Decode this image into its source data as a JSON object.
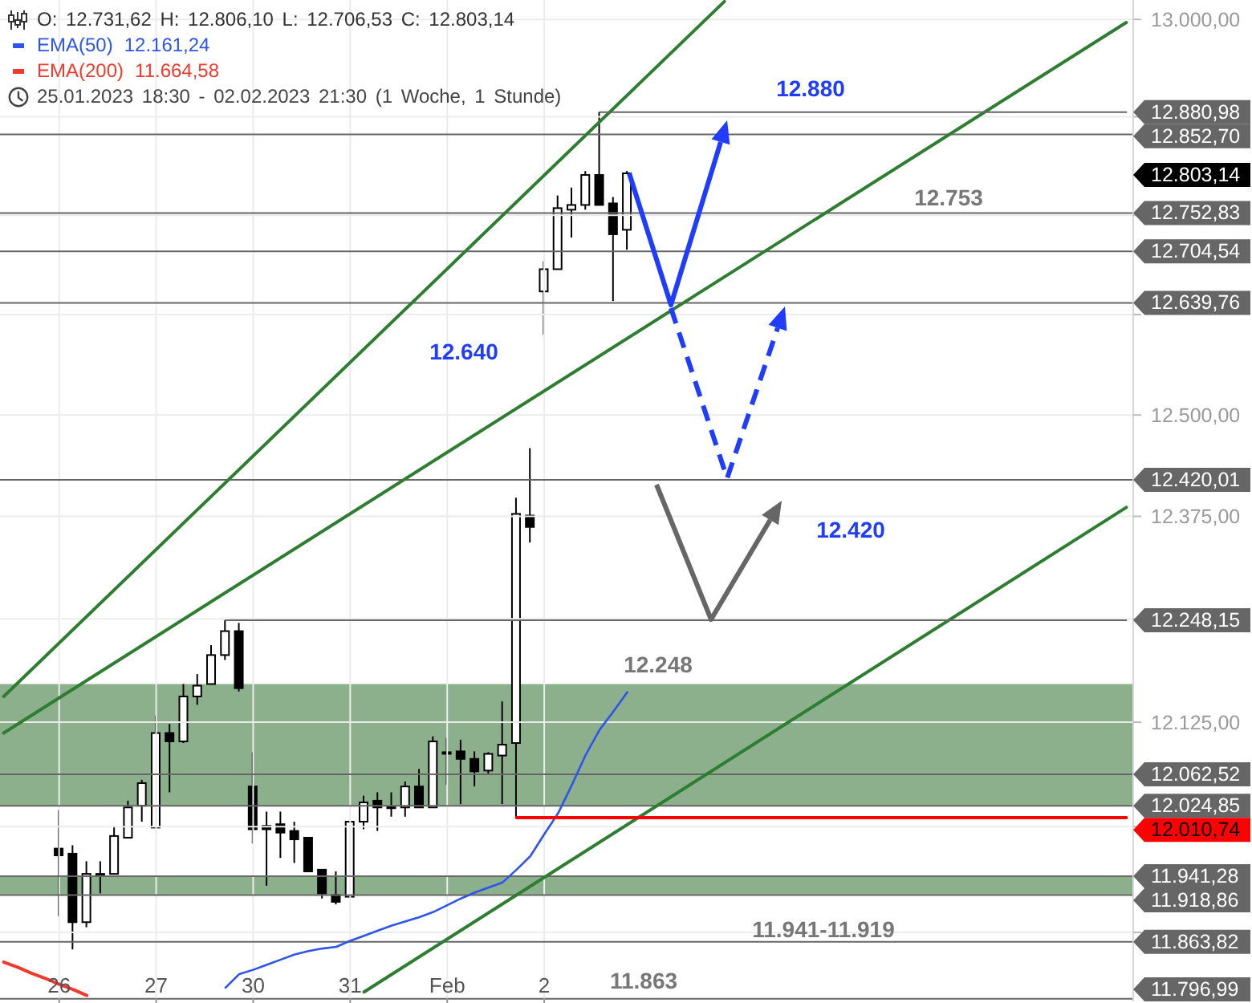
{
  "chart_data": {
    "type": "candlestick",
    "title": "O: 12.731,62 H: 12.806,10 L: 12.706,53 C: 12.803,14",
    "subtitle": "25.01.2023 18:30 - 02.02.2023 21:30 (1 Woche, 1 Stunde)",
    "categories": [
      null,
      null,
      null,
      null,
      "26",
      null,
      null,
      null,
      null,
      null,
      null,
      "27",
      null,
      null,
      null,
      null,
      null,
      null,
      "30",
      null,
      null,
      null,
      null,
      null,
      null,
      "31",
      null,
      null,
      null,
      null,
      null,
      null,
      "Feb",
      null,
      null,
      null,
      null,
      null,
      null,
      "2",
      null,
      null,
      null,
      null,
      null,
      null,
      null,
      null,
      null,
      null,
      null,
      null,
      null,
      null,
      null,
      null,
      null,
      null,
      null,
      null,
      null,
      null,
      null,
      null,
      null,
      null,
      null,
      null,
      null,
      null,
      null,
      null,
      null,
      null,
      null,
      null,
      null,
      null,
      null,
      null,
      null,
      null
    ],
    "ohlc": [
      null,
      null,
      null,
      null,
      [
        11974,
        12020,
        11894,
        11966
      ],
      [
        11968,
        11978,
        11855,
        11887
      ],
      [
        11887,
        11959,
        11881,
        11944
      ],
      [
        11942,
        11959,
        11921,
        11944
      ],
      [
        11944,
        12001,
        11944,
        11989
      ],
      [
        11987,
        12031,
        11987,
        12023
      ],
      [
        12025,
        12056,
        12006,
        12052
      ],
      [
        11999,
        12133,
        11999,
        12112
      ],
      [
        12112,
        12123,
        12041,
        12102
      ],
      [
        12102,
        12171,
        12100,
        12156
      ],
      [
        12156,
        12183,
        12146,
        12169
      ],
      [
        12171,
        12218,
        12171,
        12206
      ],
      [
        12206,
        12248.15,
        12200,
        12235
      ],
      [
        12235,
        12245,
        12162,
        12166
      ],
      [
        12048,
        12089,
        11980,
        11997
      ],
      [
        12001,
        12018,
        11930,
        11997
      ],
      [
        12003,
        12018,
        11963,
        11993
      ],
      [
        11995,
        12006,
        11957,
        11985
      ],
      [
        11987,
        11987,
        11947,
        11947
      ],
      [
        11949,
        11949,
        11915,
        11921
      ],
      [
        11919,
        11947,
        11908,
        11911
      ],
      [
        11917,
        12006,
        11917,
        12006
      ],
      [
        12006,
        12037,
        11997,
        12029
      ],
      [
        12031,
        12041,
        11995,
        12023
      ],
      [
        12023,
        12041,
        12012,
        12024
      ],
      [
        12023,
        12054,
        12012,
        12048
      ],
      [
        12048,
        12069,
        12023,
        12023
      ],
      [
        12023,
        12108,
        12023,
        12102
      ],
      [
        12088,
        12106,
        12050,
        12089
      ],
      [
        12090,
        12104,
        12027,
        12081
      ],
      [
        12081,
        12090,
        12048,
        12066
      ],
      [
        12067,
        12089,
        12062,
        12087
      ],
      [
        12085,
        12150,
        12027,
        12098
      ],
      [
        12100,
        12398,
        12010.74,
        12378
      ],
      [
        12376,
        12459,
        12343,
        12362
      ],
      [
        12654,
        12692,
        12600,
        12682
      ],
      [
        12682,
        12775,
        12682,
        12759
      ],
      [
        12757,
        12785,
        12722,
        12763
      ],
      [
        12763,
        12806,
        12757,
        12801
      ],
      [
        12801,
        12880.98,
        12763,
        12763
      ],
      [
        12765,
        12773,
        12642,
        12726
      ],
      [
        12731.62,
        12806.1,
        12706.53,
        12803.14
      ],
      null,
      null,
      null,
      null,
      null,
      null,
      null,
      null,
      null,
      null,
      null,
      null,
      null,
      null,
      null,
      null,
      null,
      null,
      null,
      null,
      null,
      null,
      null,
      null,
      null,
      null,
      null,
      null,
      null,
      null,
      null,
      null,
      null,
      null,
      null,
      null
    ],
    "series": [
      {
        "type": "line",
        "name": "EMA(50)",
        "color": "#2f54eb",
        "values": [
          null,
          null,
          null,
          null,
          null,
          null,
          null,
          null,
          null,
          null,
          null,
          null,
          null,
          null,
          null,
          null,
          11810,
          11826,
          11831,
          11837,
          11843,
          11849,
          11853,
          11856,
          11858,
          11865,
          11871,
          11877,
          11883,
          11888,
          11893,
          11899,
          11907,
          11915,
          11922,
          11928,
          11934,
          11949,
          11965,
          11991,
          12016,
          12050,
          12086,
          12116,
          12138,
          12161.24,
          null,
          null,
          null,
          null,
          null,
          null,
          null,
          null,
          null,
          null,
          null,
          null,
          null,
          null,
          null,
          null,
          null,
          null,
          null,
          null,
          null,
          null,
          null,
          null,
          null,
          null,
          null,
          null,
          null,
          null,
          null,
          null,
          null,
          null,
          null,
          null
        ]
      },
      {
        "type": "line",
        "name": "EMA(200)",
        "color": "#f03a2e",
        "values": [
          11840,
          11834,
          11827,
          11821,
          11814,
          11808,
          11801,
          null,
          null,
          null,
          null,
          null,
          null,
          null,
          null,
          null,
          null,
          null,
          null,
          null,
          null,
          null,
          null,
          null,
          null,
          null,
          null,
          null,
          null,
          null,
          null,
          null,
          null,
          null,
          null,
          null,
          null,
          null,
          null,
          null,
          null,
          null,
          null,
          null,
          null,
          null,
          null,
          null,
          null,
          null,
          null,
          null,
          null,
          null,
          null,
          null,
          null,
          null,
          null,
          null,
          null,
          null,
          null,
          null,
          null,
          null,
          null,
          null,
          null,
          null,
          null,
          null,
          null,
          null,
          null,
          null,
          null,
          null,
          null,
          null,
          null,
          null
        ]
      },
      {
        "type": "line",
        "color": "#2e7d32",
        "values": [
          12156,
          null,
          null,
          null,
          null,
          null,
          null,
          null,
          null,
          null,
          null,
          null,
          null,
          null,
          null,
          null,
          null,
          null,
          null,
          null,
          null,
          null,
          null,
          null,
          null,
          null,
          null,
          null,
          null,
          null,
          null,
          null,
          null,
          null,
          null,
          null,
          null,
          null,
          null,
          null,
          null,
          null,
          null,
          null,
          null,
          null,
          null,
          null,
          null,
          null,
          null,
          null,
          13023,
          null,
          null,
          null,
          null,
          null,
          null,
          null,
          null,
          null,
          null,
          null,
          null,
          null,
          null,
          null,
          null,
          null,
          null,
          null,
          null,
          null,
          null,
          null,
          null,
          null,
          null,
          null,
          null,
          null
        ]
      },
      {
        "type": "line",
        "color": "#2e7d32",
        "values": [
          12112,
          null,
          null,
          null,
          null,
          null,
          null,
          null,
          null,
          null,
          null,
          null,
          null,
          null,
          null,
          null,
          null,
          null,
          null,
          null,
          null,
          null,
          null,
          null,
          null,
          null,
          null,
          null,
          null,
          null,
          null,
          null,
          null,
          null,
          null,
          null,
          null,
          null,
          null,
          null,
          null,
          null,
          null,
          null,
          null,
          null,
          null,
          null,
          null,
          null,
          null,
          null,
          null,
          null,
          null,
          null,
          null,
          null,
          null,
          null,
          null,
          null,
          null,
          null,
          null,
          null,
          null,
          null,
          null,
          null,
          null,
          null,
          null,
          null,
          null,
          null,
          null,
          null,
          null,
          null,
          null,
          12996
        ]
      },
      {
        "type": "line",
        "color": "#2e7d32",
        "values": [
          null,
          null,
          null,
          null,
          null,
          null,
          null,
          null,
          null,
          null,
          null,
          null,
          null,
          null,
          null,
          null,
          null,
          null,
          null,
          null,
          null,
          null,
          null,
          null,
          null,
          null,
          11805,
          null,
          null,
          null,
          null,
          null,
          null,
          null,
          null,
          null,
          null,
          null,
          null,
          null,
          null,
          null,
          null,
          null,
          null,
          null,
          null,
          null,
          null,
          null,
          null,
          null,
          null,
          null,
          null,
          null,
          null,
          null,
          null,
          null,
          null,
          null,
          null,
          null,
          null,
          null,
          null,
          null,
          null,
          null,
          null,
          null,
          null,
          null,
          null,
          null,
          null,
          null,
          null,
          null,
          null,
          12386
        ]
      },
      {
        "type": "line",
        "color": "#666666",
        "values": [
          null,
          null,
          null,
          null,
          null,
          null,
          null,
          null,
          null,
          null,
          null,
          null,
          null,
          null,
          null,
          null,
          null,
          null,
          null,
          null,
          null,
          null,
          null,
          null,
          null,
          null,
          null,
          null,
          null,
          null,
          null,
          null,
          null,
          null,
          null,
          null,
          null,
          null,
          null,
          null,
          null,
          null,
          null,
          12880.98,
          null,
          null,
          null,
          null,
          null,
          null,
          null,
          null,
          null,
          null,
          null,
          null,
          null,
          null,
          null,
          null,
          null,
          null,
          null,
          null,
          null,
          null,
          null,
          null,
          null,
          null,
          null,
          null,
          null,
          null,
          null,
          null,
          null,
          null,
          null,
          null,
          null,
          12880.98
        ],
        "value_labels": [
          null,
          null,
          null,
          null,
          null,
          null,
          null,
          null,
          null,
          null,
          null,
          null,
          null,
          null,
          null,
          null,
          null,
          null,
          null,
          null,
          null,
          null,
          null,
          null,
          null,
          null,
          null,
          null,
          null,
          null,
          null,
          null,
          null,
          null,
          null,
          null,
          null,
          null,
          null,
          null,
          null,
          null,
          null,
          null,
          null,
          null,
          null,
          null,
          null,
          null,
          null,
          null,
          null,
          null,
          null,
          null,
          null,
          null,
          null,
          null,
          null,
          null,
          null,
          null,
          null,
          null,
          null,
          null,
          null,
          null,
          null,
          null,
          null,
          null,
          null,
          null,
          null,
          null,
          null,
          null,
          null,
          "12.880,98"
        ]
      },
      {
        "type": "line",
        "color": "#666666",
        "values": [
          null,
          null,
          null,
          null,
          null,
          null,
          null,
          null,
          null,
          null,
          null,
          null,
          null,
          null,
          null,
          null,
          12248.15,
          null,
          null,
          null,
          null,
          null,
          null,
          null,
          null,
          null,
          null,
          null,
          null,
          null,
          null,
          null,
          null,
          null,
          null,
          null,
          null,
          null,
          null,
          null,
          null,
          null,
          null,
          null,
          null,
          null,
          null,
          null,
          null,
          null,
          null,
          null,
          null,
          null,
          null,
          null,
          null,
          null,
          null,
          null,
          null,
          null,
          null,
          null,
          null,
          null,
          null,
          null,
          null,
          null,
          null,
          null,
          null,
          null,
          null,
          null,
          null,
          null,
          null,
          null,
          null,
          12248.15
        ],
        "value_labels": [
          null,
          null,
          null,
          null,
          null,
          null,
          null,
          null,
          null,
          null,
          null,
          null,
          null,
          null,
          null,
          null,
          null,
          null,
          null,
          null,
          null,
          null,
          null,
          null,
          null,
          null,
          null,
          null,
          null,
          null,
          null,
          null,
          null,
          null,
          null,
          null,
          null,
          null,
          null,
          null,
          null,
          null,
          null,
          null,
          null,
          null,
          null,
          null,
          null,
          null,
          null,
          null,
          null,
          null,
          null,
          null,
          null,
          null,
          null,
          null,
          null,
          null,
          null,
          null,
          null,
          null,
          null,
          null,
          null,
          null,
          null,
          null,
          null,
          null,
          null,
          null,
          null,
          null,
          null,
          null,
          null,
          "12.248,15"
        ]
      },
      {
        "type": "line",
        "color": "#ff0000",
        "values": [
          null,
          null,
          null,
          null,
          null,
          null,
          null,
          null,
          null,
          null,
          null,
          null,
          null,
          null,
          null,
          null,
          null,
          null,
          null,
          null,
          null,
          null,
          null,
          null,
          null,
          null,
          null,
          null,
          null,
          null,
          null,
          null,
          null,
          null,
          null,
          null,
          null,
          12010.74,
          null,
          null,
          null,
          null,
          null,
          null,
          null,
          null,
          null,
          null,
          null,
          null,
          null,
          null,
          null,
          null,
          null,
          null,
          null,
          null,
          null,
          null,
          null,
          null,
          null,
          null,
          null,
          null,
          null,
          null,
          null,
          null,
          null,
          null,
          null,
          null,
          null,
          null,
          null,
          null,
          null,
          null,
          null,
          12010.74
        ],
        "value_labels": [
          null,
          null,
          null,
          null,
          null,
          null,
          null,
          null,
          null,
          null,
          null,
          null,
          null,
          null,
          null,
          null,
          null,
          null,
          null,
          null,
          null,
          null,
          null,
          null,
          null,
          null,
          null,
          null,
          null,
          null,
          null,
          null,
          null,
          null,
          null,
          null,
          null,
          null,
          null,
          null,
          null,
          null,
          null,
          null,
          null,
          null,
          null,
          null,
          null,
          null,
          null,
          null,
          null,
          null,
          null,
          null,
          null,
          null,
          null,
          null,
          null,
          null,
          null,
          null,
          null,
          null,
          null,
          null,
          null,
          null,
          null,
          null,
          null,
          null,
          null,
          null,
          null,
          null,
          null,
          null,
          null,
          "12.010,74"
        ]
      }
    ],
    "ylim": [
      11794,
      13025
    ],
    "yticks": [
      {
        "value": 13000,
        "label": "13.000,00"
      },
      {
        "value": 12875,
        "label": null
      },
      {
        "value": 12750,
        "label": null
      },
      {
        "value": 12625,
        "label": null
      },
      {
        "value": 12500,
        "label": "12.500,00"
      },
      {
        "value": 12375,
        "label": "12.375,00"
      },
      {
        "value": 12250,
        "label": null
      },
      {
        "value": 12125,
        "label": "12.125,00"
      },
      {
        "value": 12000,
        "label": null
      },
      {
        "value": 11875,
        "label": null
      }
    ],
    "log": true,
    "grid": true,
    "legend": "top left",
    "ref_lines": [
      {
        "axis": "y",
        "value": 12852.7,
        "label": "12.852,70",
        "color": "#666666"
      },
      {
        "axis": "y",
        "value": 12752.83,
        "label": "12.752,83",
        "color": "#666666"
      },
      {
        "axis": "y",
        "value": 12704.54,
        "label": "12.704,54",
        "color": "#666666"
      },
      {
        "axis": "y",
        "value": 12639.76,
        "label": "12.639,76",
        "color": "#666666"
      },
      {
        "axis": "y",
        "value": 12420.01,
        "label": "12.420,01",
        "color": "#666666"
      },
      {
        "axis": "y",
        "value": 12062.52,
        "label": "12.062,52",
        "color": "#666666"
      },
      {
        "axis": "y",
        "value": 12024.85,
        "label": "12.024,85",
        "color": "#666666"
      },
      {
        "axis": "y",
        "value": 11941.28,
        "label": "11.941,28",
        "color": "#666666"
      },
      {
        "axis": "y",
        "value": 11918.86,
        "label": "11.918,86",
        "color": "#666666"
      },
      {
        "axis": "y",
        "value": 11863.82,
        "label": "11.863,82",
        "color": "#666666"
      },
      {
        "axis": "y",
        "value": 11796.99,
        "label": "11.796,99",
        "color": "#666666"
      }
    ],
    "bands": [
      {
        "axis": "y",
        "from": 12024.85,
        "to": 12171,
        "color": "#8cb08c"
      },
      {
        "axis": "y",
        "from": 11918.86,
        "to": 11941.28,
        "color": "#8cb08c"
      }
    ],
    "annotations": [
      "12.161,24",
      "11.664,58",
      "12.880",
      "12.753",
      "12.640",
      "12.420",
      "12.248",
      "11.941-11.919",
      "11.863",
      "12.803,14"
    ]
  }
}
